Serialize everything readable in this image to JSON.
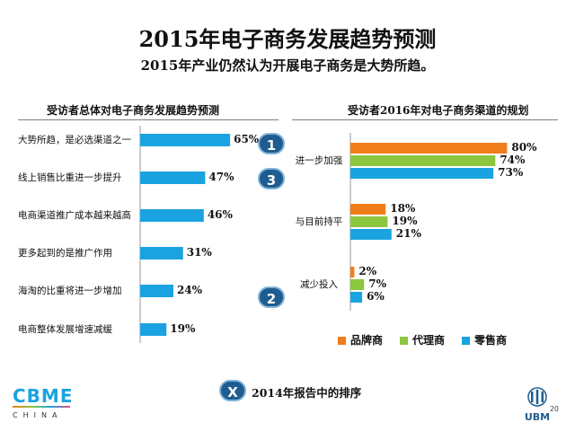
{
  "header": {
    "title": "2015年电子商务发展趋势预测",
    "subtitle": "2015年产业仍然认为开展电子商务是大势所趋。"
  },
  "colors": {
    "bar_blue": "#1aa3e0",
    "brand_orange": "#f07d1a",
    "agent_green": "#8cc63f",
    "retail_blue": "#1aa3e0",
    "badge_blue": "#1f5c8f"
  },
  "chart_data": [
    {
      "type": "bar",
      "orientation": "horizontal",
      "title": "受访者总体对电子商务发展趋势预测",
      "categories": [
        "大势所趋，是必选渠道之一",
        "线上销售比重进一步提升",
        "电商渠道推广成本越来越高",
        "更多起到的是推广作用",
        "海淘的比重将进一步增加",
        "电商整体发展增速减缓"
      ],
      "values": [
        65,
        47,
        46,
        31,
        24,
        19
      ],
      "value_labels": [
        "65%",
        "47%",
        "46%",
        "31%",
        "24%",
        "19%"
      ],
      "xlim": [
        0,
        100
      ],
      "grid": false
    },
    {
      "type": "bar",
      "orientation": "horizontal",
      "title": "受访者2016年对电子商务渠道的规划",
      "categories": [
        "进一步加强",
        "与目前持平",
        "减少投入"
      ],
      "series": [
        {
          "name": "品牌商",
          "values": [
            80,
            18,
            2
          ],
          "value_labels": [
            "80%",
            "18%",
            "2%"
          ],
          "color": "#f07d1a"
        },
        {
          "name": "代理商",
          "values": [
            74,
            19,
            7
          ],
          "value_labels": [
            "74%",
            "19%",
            "7%"
          ],
          "color": "#8cc63f"
        },
        {
          "name": "零售商",
          "values": [
            73,
            21,
            6
          ],
          "value_labels": [
            "73%",
            "21%",
            "6%"
          ],
          "color": "#1aa3e0"
        }
      ],
      "legend": "bottom",
      "xlim": [
        0,
        100
      ],
      "grid": false
    }
  ],
  "badges": [
    {
      "text": "1",
      "row": 0
    },
    {
      "text": "3",
      "row": 1
    },
    {
      "text": "2",
      "row": 4
    }
  ],
  "footer": {
    "note_badge": "X",
    "note": "2014年报告中的排序",
    "logo_left": "CBME",
    "logo_left_sub": "CHINA",
    "logo_right": "UBM",
    "page_number": "20"
  }
}
